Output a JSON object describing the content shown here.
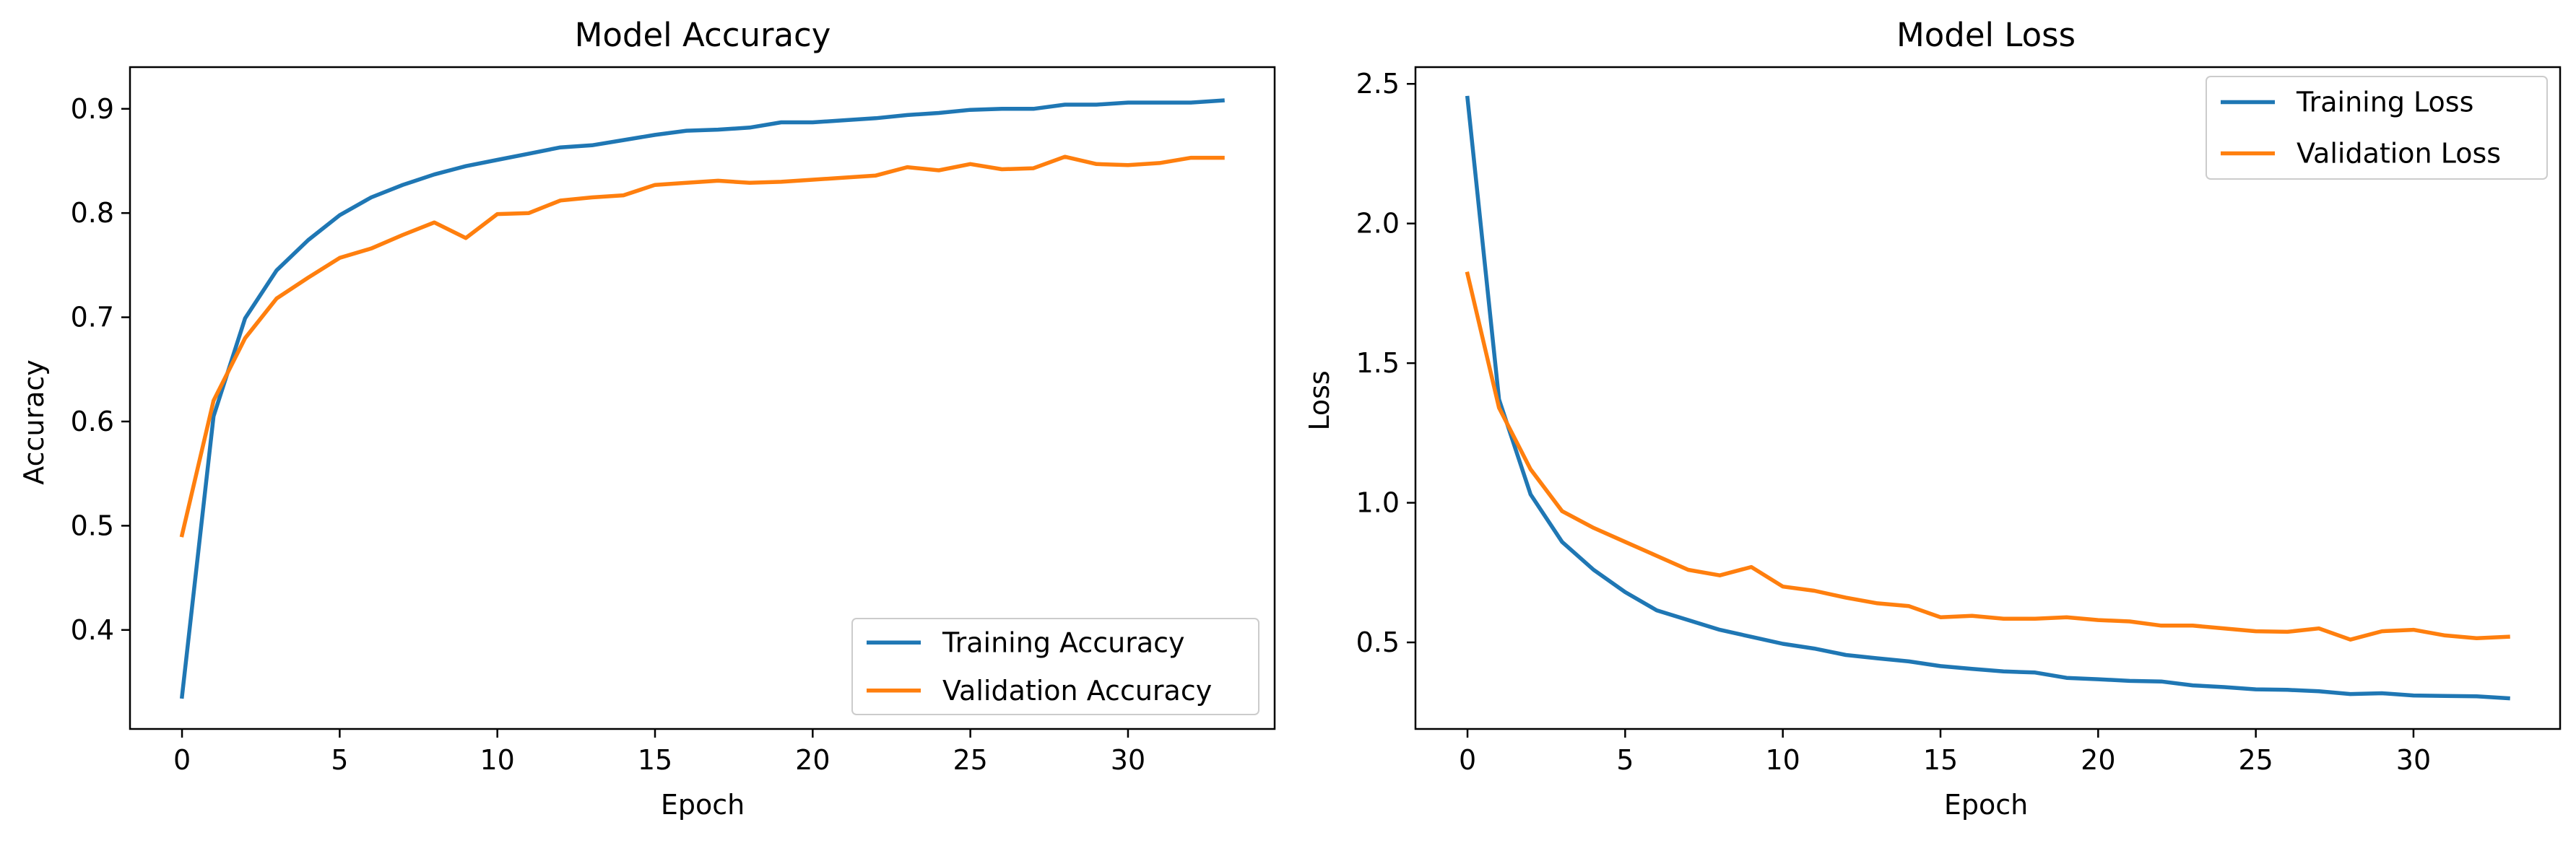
{
  "chart_data": [
    {
      "type": "line",
      "title": "Model Accuracy",
      "xlabel": "Epoch",
      "ylabel": "Accuracy",
      "xlim": [
        -1.65,
        34.65
      ],
      "ylim": [
        0.305,
        0.94
      ],
      "xticks": [
        0,
        5,
        10,
        15,
        20,
        25,
        30
      ],
      "yticks": [
        0.4,
        0.5,
        0.6,
        0.7,
        0.8,
        0.9
      ],
      "ytick_labels": [
        "0.4",
        "0.5",
        "0.6",
        "0.7",
        "0.8",
        "0.9"
      ],
      "grid": false,
      "legend_position": "lower-right",
      "x": [
        0,
        1,
        2,
        3,
        4,
        5,
        6,
        7,
        8,
        9,
        10,
        11,
        12,
        13,
        14,
        15,
        16,
        17,
        18,
        19,
        20,
        21,
        22,
        23,
        24,
        25,
        26,
        27,
        28,
        29,
        30,
        31,
        32,
        33
      ],
      "series": [
        {
          "name": "Training Accuracy",
          "color": "#1f77b4",
          "values": [
            0.336,
            0.605,
            0.699,
            0.745,
            0.774,
            0.798,
            0.815,
            0.827,
            0.837,
            0.845,
            0.851,
            0.857,
            0.863,
            0.865,
            0.87,
            0.875,
            0.879,
            0.88,
            0.882,
            0.887,
            0.887,
            0.889,
            0.891,
            0.894,
            0.896,
            0.899,
            0.9,
            0.9,
            0.904,
            0.904,
            0.906,
            0.906,
            0.906,
            0.908
          ]
        },
        {
          "name": "Validation Accuracy",
          "color": "#ff7f0e",
          "values": [
            0.491,
            0.62,
            0.68,
            0.718,
            0.738,
            0.757,
            0.766,
            0.779,
            0.791,
            0.776,
            0.799,
            0.8,
            0.812,
            0.815,
            0.817,
            0.827,
            0.829,
            0.831,
            0.829,
            0.83,
            0.832,
            0.834,
            0.836,
            0.844,
            0.841,
            0.847,
            0.842,
            0.843,
            0.854,
            0.847,
            0.846,
            0.848,
            0.853,
            0.853
          ]
        }
      ]
    },
    {
      "type": "line",
      "title": "Model Loss",
      "xlabel": "Epoch",
      "ylabel": "Loss",
      "xlim": [
        -1.65,
        34.65
      ],
      "ylim": [
        0.19,
        2.56
      ],
      "xticks": [
        0,
        5,
        10,
        15,
        20,
        25,
        30
      ],
      "yticks": [
        0.5,
        1.0,
        1.5,
        2.0,
        2.5
      ],
      "ytick_labels": [
        "0.5",
        "1.0",
        "1.5",
        "2.0",
        "2.5"
      ],
      "grid": false,
      "legend_position": "upper-right",
      "x": [
        0,
        1,
        2,
        3,
        4,
        5,
        6,
        7,
        8,
        9,
        10,
        11,
        12,
        13,
        14,
        15,
        16,
        17,
        18,
        19,
        20,
        21,
        22,
        23,
        24,
        25,
        26,
        27,
        28,
        29,
        30,
        31,
        32,
        33
      ],
      "series": [
        {
          "name": "Training Loss",
          "color": "#1f77b4",
          "values": [
            2.45,
            1.37,
            1.03,
            0.86,
            0.76,
            0.68,
            0.615,
            0.58,
            0.545,
            0.52,
            0.495,
            0.478,
            0.455,
            0.443,
            0.432,
            0.415,
            0.405,
            0.396,
            0.392,
            0.373,
            0.368,
            0.362,
            0.36,
            0.346,
            0.34,
            0.332,
            0.33,
            0.325,
            0.315,
            0.318,
            0.31,
            0.308,
            0.307,
            0.3
          ]
        },
        {
          "name": "Validation Loss",
          "color": "#ff7f0e",
          "values": [
            1.82,
            1.34,
            1.12,
            0.97,
            0.91,
            0.86,
            0.81,
            0.76,
            0.74,
            0.77,
            0.7,
            0.685,
            0.66,
            0.64,
            0.63,
            0.59,
            0.595,
            0.585,
            0.585,
            0.59,
            0.58,
            0.575,
            0.56,
            0.56,
            0.55,
            0.54,
            0.538,
            0.55,
            0.51,
            0.54,
            0.545,
            0.525,
            0.515,
            0.52
          ]
        }
      ]
    }
  ]
}
